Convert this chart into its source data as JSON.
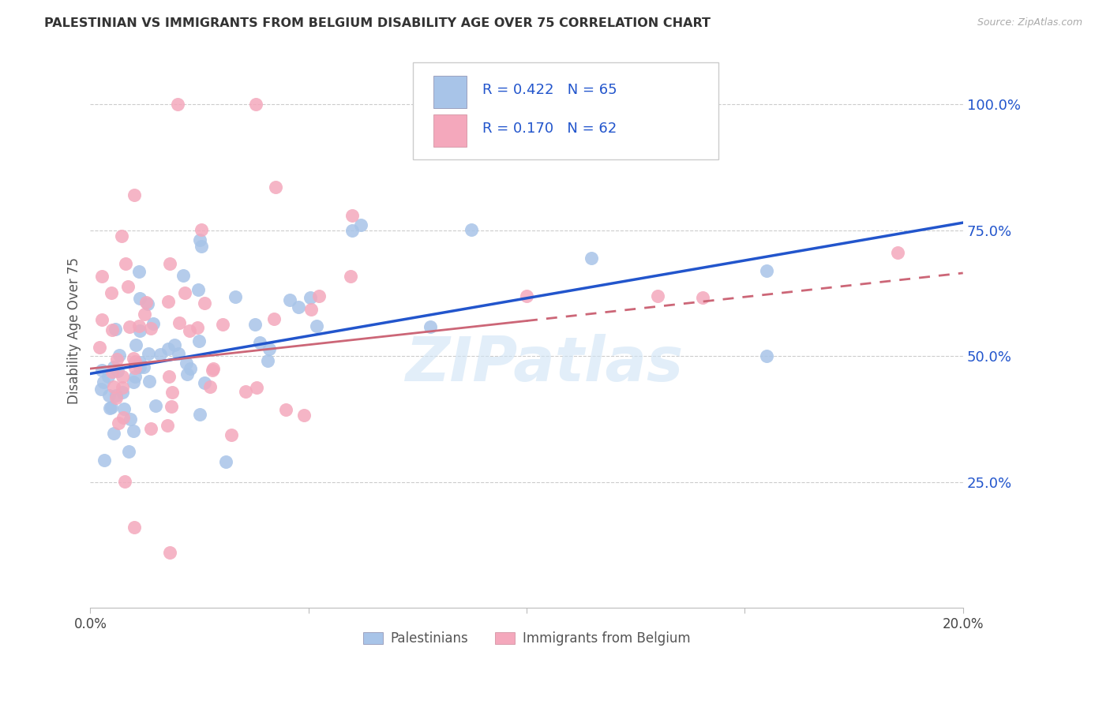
{
  "title": "PALESTINIAN VS IMMIGRANTS FROM BELGIUM DISABILITY AGE OVER 75 CORRELATION CHART",
  "source": "Source: ZipAtlas.com",
  "ylabel": "Disability Age Over 75",
  "xlim": [
    0.0,
    0.2
  ],
  "ylim": [
    0.0,
    1.1
  ],
  "xticks": [
    0.0,
    0.05,
    0.1,
    0.15,
    0.2
  ],
  "xtick_labels": [
    "0.0%",
    "",
    "",
    "",
    "20.0%"
  ],
  "ytick_labels_right": [
    "100.0%",
    "75.0%",
    "50.0%",
    "25.0%"
  ],
  "ytick_vals_right": [
    1.0,
    0.75,
    0.5,
    0.25
  ],
  "blue_R": 0.422,
  "blue_N": 65,
  "pink_R": 0.17,
  "pink_N": 62,
  "blue_color": "#a8c4e8",
  "pink_color": "#f4a8bc",
  "blue_line_color": "#2255cc",
  "pink_line_color": "#cc6677",
  "legend_label_blue": "Palestinians",
  "legend_label_pink": "Immigrants from Belgium",
  "watermark": "ZIPatlas",
  "blue_line_x0": 0.0,
  "blue_line_y0": 0.465,
  "blue_line_x1": 0.2,
  "blue_line_y1": 0.765,
  "pink_line_x0": 0.0,
  "pink_line_y0": 0.475,
  "pink_line_x1": 0.2,
  "pink_line_y1": 0.665
}
